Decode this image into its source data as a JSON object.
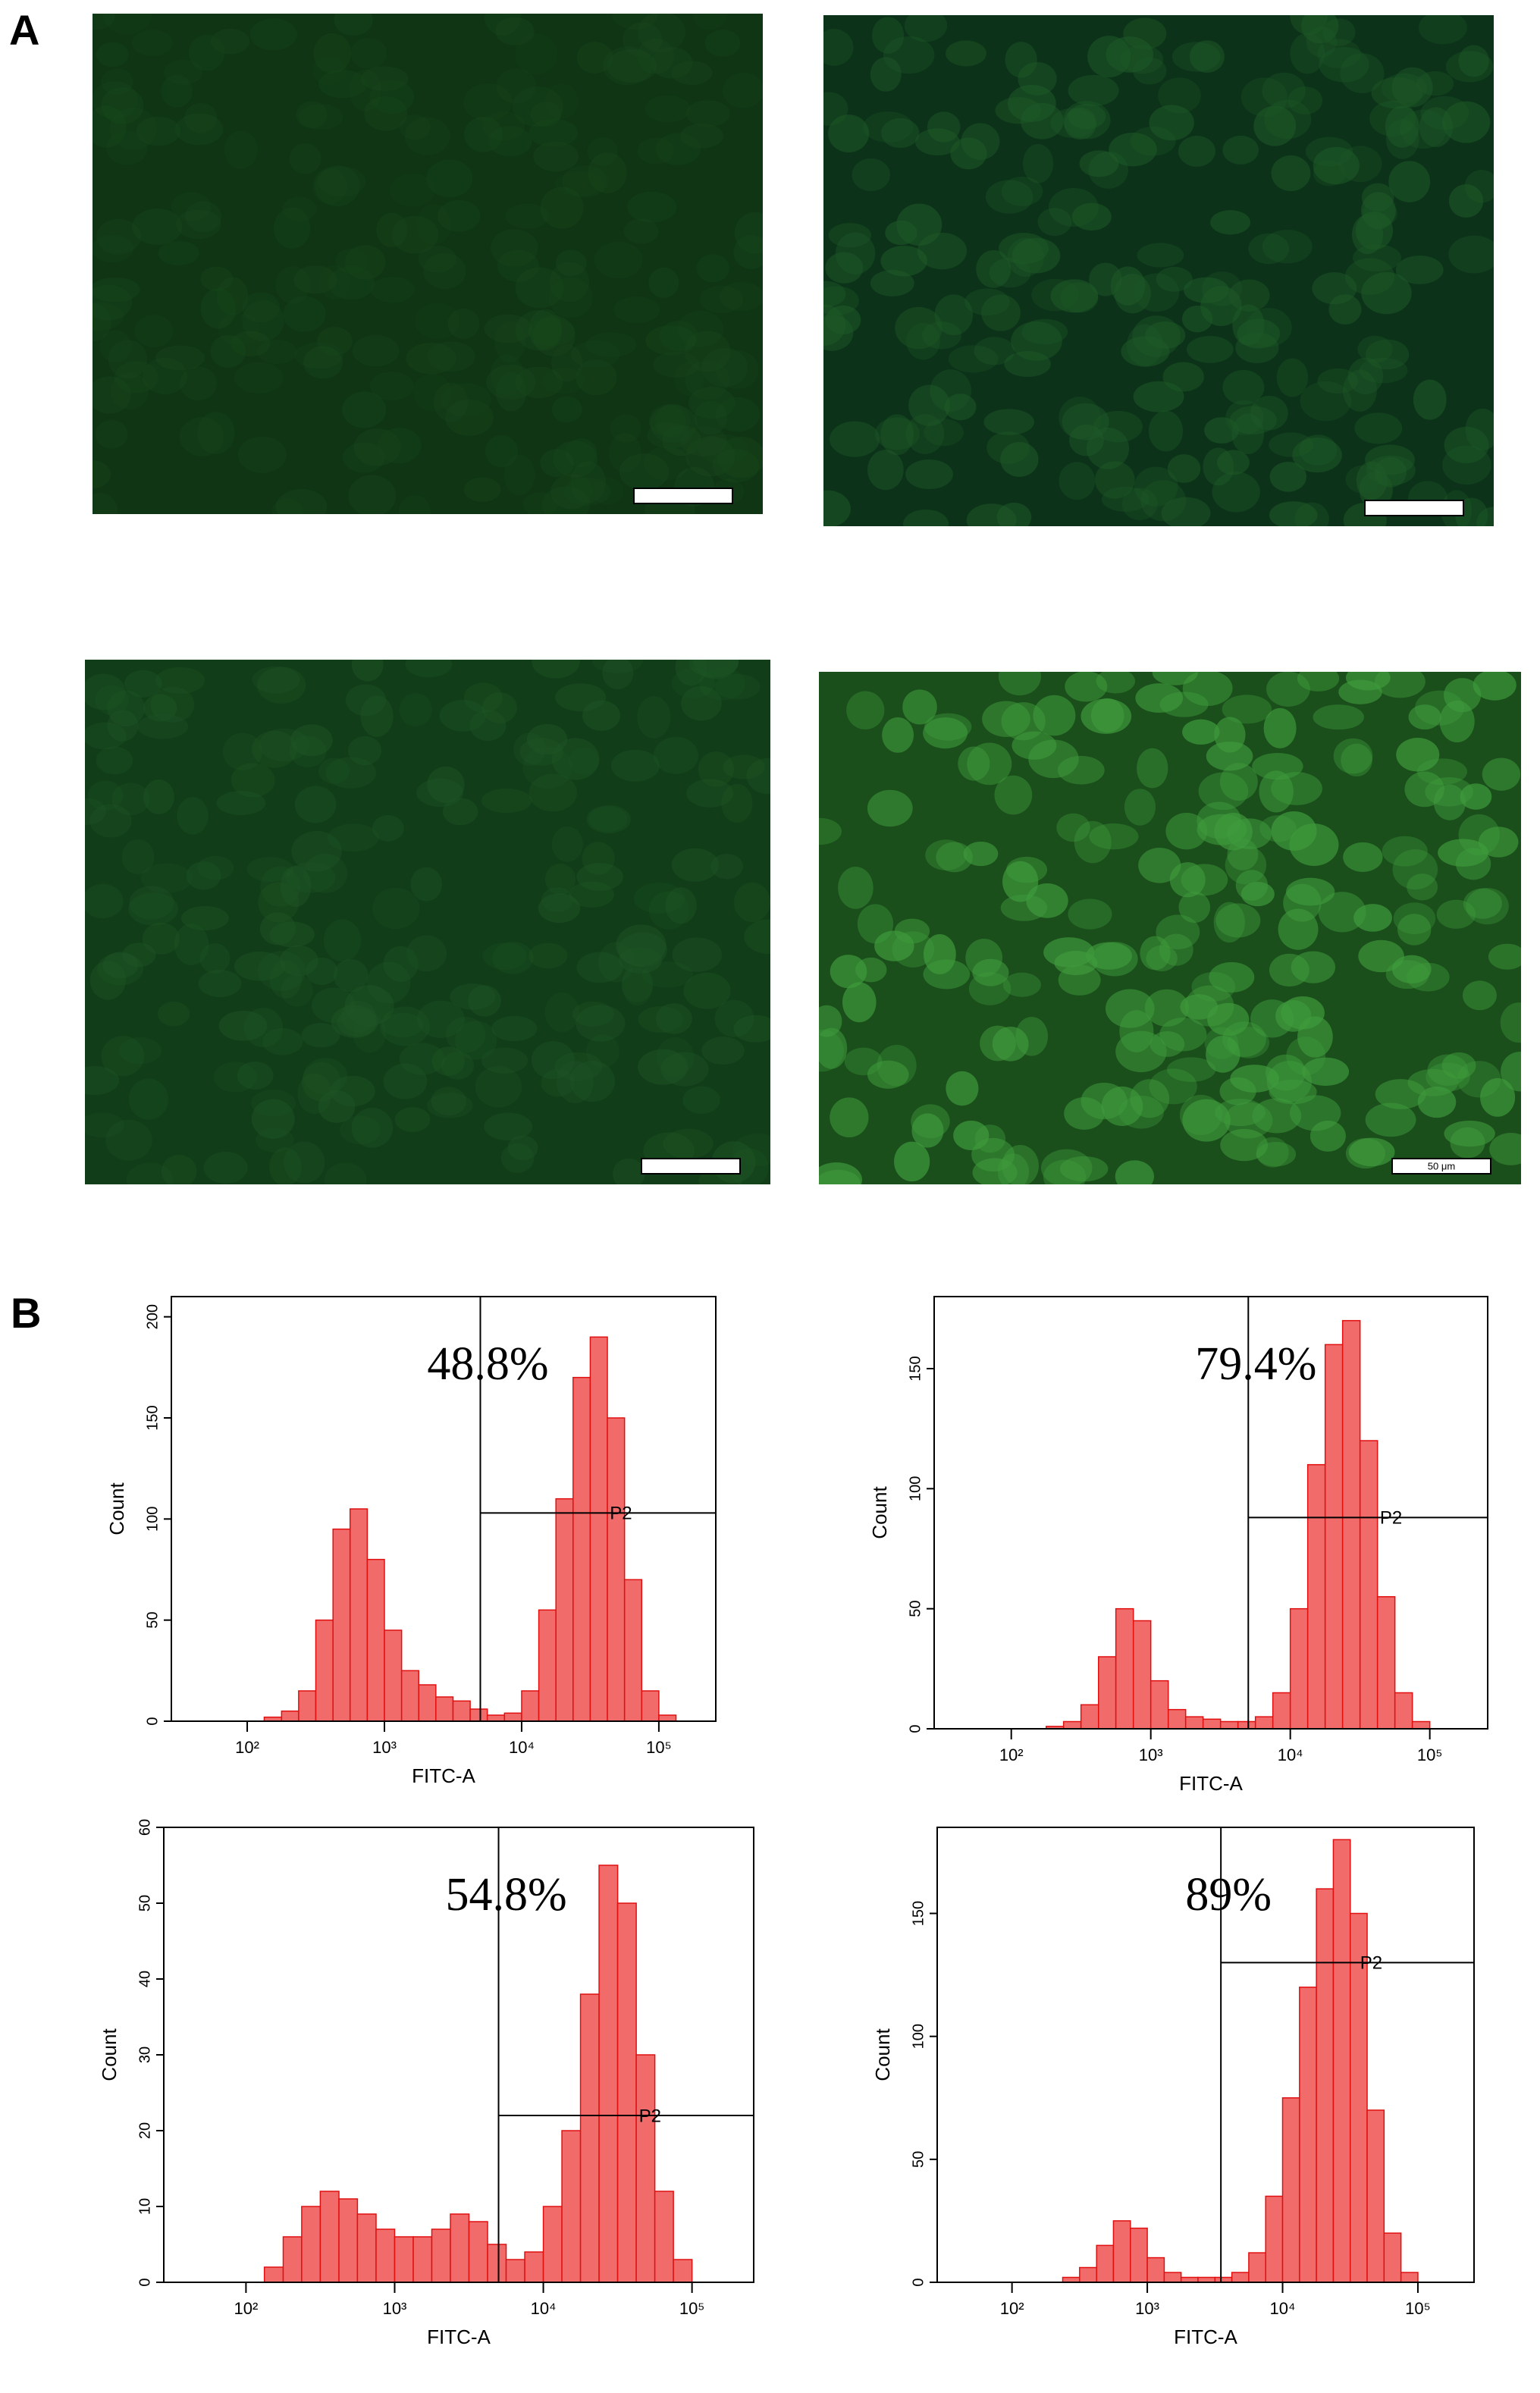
{
  "figure": {
    "panels": [
      "A",
      "B"
    ],
    "scale_bar_label": "50 μm"
  },
  "chart_data": [
    {
      "type": "histogram",
      "annotation": "48.8%",
      "gate_label": "P2",
      "x_label": "FITC-A",
      "y_label": "Count",
      "log_x": true,
      "color": "#f26b6b",
      "bins": [
        100,
        133,
        178,
        237,
        316,
        422,
        562,
        750,
        1000,
        1334,
        1778,
        2371,
        3162,
        4217,
        5623,
        7499,
        10000,
        13335,
        17783,
        23714,
        31623,
        42170,
        56234,
        74989,
        100000,
        133352,
        177828
      ],
      "values": [
        0,
        2,
        5,
        15,
        50,
        95,
        105,
        80,
        45,
        25,
        18,
        12,
        10,
        6,
        3,
        4,
        15,
        55,
        110,
        170,
        190,
        150,
        70,
        15,
        3,
        0
      ],
      "xlim": [
        28,
        260000
      ],
      "ylim": [
        0,
        210
      ],
      "xticks": [
        {
          "value": 100,
          "label": "10²"
        },
        {
          "value": 1000,
          "label": "10³"
        },
        {
          "value": 10000,
          "label": "10⁴"
        },
        {
          "value": 100000,
          "label": "10⁵"
        }
      ],
      "yticks": [
        0,
        50,
        100,
        150,
        200
      ],
      "gate_x": 5000,
      "gate_y": 103
    },
    {
      "type": "histogram",
      "annotation": "79.4%",
      "gate_label": "P2",
      "x_label": "FITC-A",
      "y_label": "Count",
      "log_x": true,
      "color": "#f26b6b",
      "bins": [
        100,
        133,
        178,
        237,
        316,
        422,
        562,
        750,
        1000,
        1334,
        1778,
        2371,
        3162,
        4217,
        5623,
        7499,
        10000,
        13335,
        17783,
        23714,
        31623,
        42170,
        56234,
        74989,
        100000,
        133352,
        177828
      ],
      "values": [
        0,
        0,
        1,
        3,
        10,
        30,
        50,
        45,
        20,
        8,
        5,
        4,
        3,
        3,
        5,
        15,
        50,
        110,
        160,
        170,
        120,
        55,
        15,
        3,
        0,
        0
      ],
      "xlim": [
        28,
        260000
      ],
      "ylim": [
        0,
        180
      ],
      "xticks": [
        {
          "value": 100,
          "label": "10²"
        },
        {
          "value": 1000,
          "label": "10³"
        },
        {
          "value": 10000,
          "label": "10⁴"
        },
        {
          "value": 100000,
          "label": "10⁵"
        }
      ],
      "yticks": [
        0,
        50,
        100,
        150
      ],
      "gate_x": 5000,
      "gate_y": 88
    },
    {
      "type": "histogram",
      "annotation": "54.8%",
      "gate_label": "P2",
      "x_label": "FITC-A",
      "y_label": "Count",
      "log_x": true,
      "color": "#f26b6b",
      "bins": [
        100,
        133,
        178,
        237,
        316,
        422,
        562,
        750,
        1000,
        1334,
        1778,
        2371,
        3162,
        4217,
        5623,
        7499,
        10000,
        13335,
        17783,
        23714,
        31623,
        42170,
        56234,
        74989,
        100000,
        133352,
        177828
      ],
      "values": [
        0,
        2,
        6,
        10,
        12,
        11,
        9,
        7,
        6,
        6,
        7,
        9,
        8,
        5,
        3,
        4,
        10,
        20,
        38,
        55,
        50,
        30,
        12,
        3,
        0,
        0
      ],
      "xlim": [
        28,
        260000
      ],
      "ylim": [
        0,
        60
      ],
      "xticks": [
        {
          "value": 100,
          "label": "10²"
        },
        {
          "value": 1000,
          "label": "10³"
        },
        {
          "value": 10000,
          "label": "10⁴"
        },
        {
          "value": 100000,
          "label": "10⁵"
        }
      ],
      "yticks": [
        0,
        10,
        20,
        30,
        40,
        50,
        60
      ],
      "gate_x": 5000,
      "gate_y": 22
    },
    {
      "type": "histogram",
      "annotation": "89%",
      "gate_label": "P2",
      "x_label": "FITC-A",
      "y_label": "Count",
      "log_x": true,
      "color": "#f26b6b",
      "bins": [
        100,
        133,
        178,
        237,
        316,
        422,
        562,
        750,
        1000,
        1334,
        1778,
        2371,
        3162,
        4217,
        5623,
        7499,
        10000,
        13335,
        17783,
        23714,
        31623,
        42170,
        56234,
        74989,
        100000,
        133352,
        177828
      ],
      "values": [
        0,
        0,
        0,
        2,
        6,
        15,
        25,
        22,
        10,
        4,
        2,
        2,
        2,
        4,
        12,
        35,
        75,
        120,
        160,
        180,
        150,
        70,
        20,
        4,
        0,
        0
      ],
      "xlim": [
        28,
        260000
      ],
      "ylim": [
        0,
        185
      ],
      "xticks": [
        {
          "value": 100,
          "label": "10²"
        },
        {
          "value": 1000,
          "label": "10³"
        },
        {
          "value": 10000,
          "label": "10⁴"
        },
        {
          "value": 100000,
          "label": "10⁵"
        }
      ],
      "yticks": [
        0,
        50,
        100,
        150
      ],
      "gate_x": 3500,
      "gate_y": 130
    }
  ]
}
